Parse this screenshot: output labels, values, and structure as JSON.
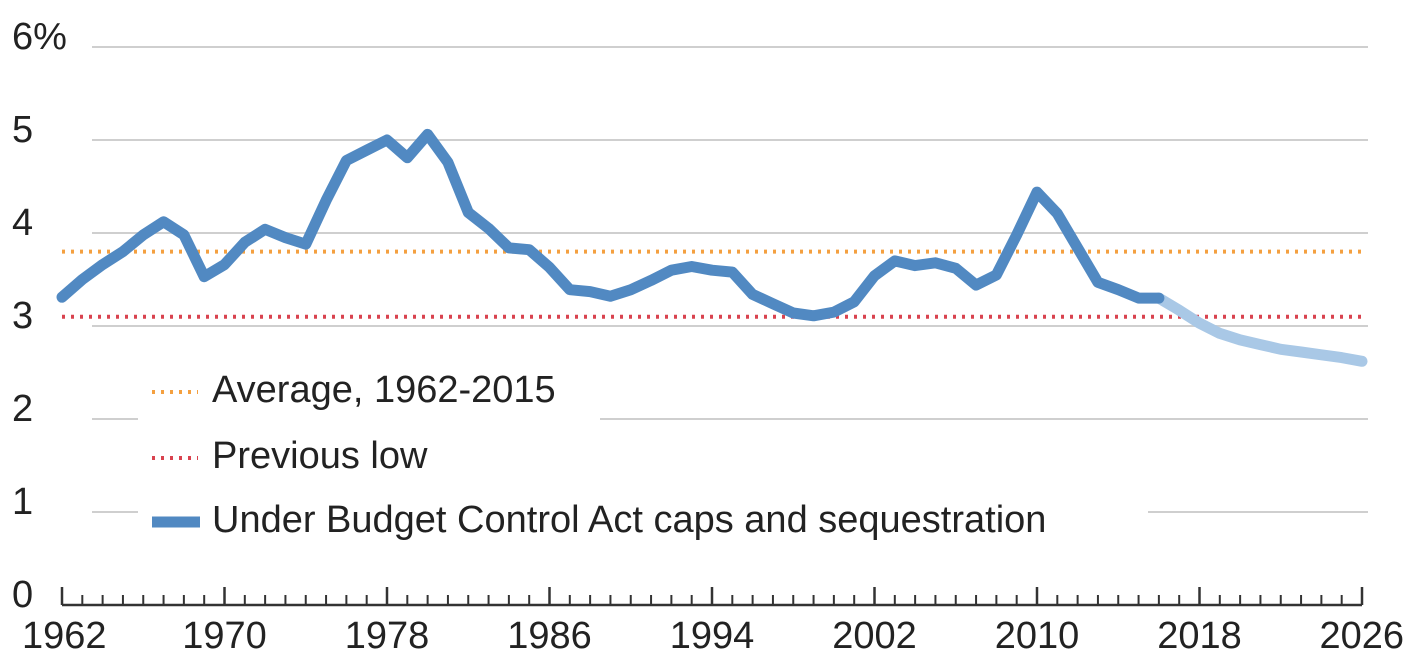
{
  "chart_data": {
    "type": "line",
    "x": [
      1962,
      1963,
      1964,
      1965,
      1966,
      1967,
      1968,
      1969,
      1970,
      1971,
      1972,
      1973,
      1974,
      1975,
      1976,
      1977,
      1978,
      1979,
      1980,
      1981,
      1982,
      1983,
      1984,
      1985,
      1986,
      1987,
      1988,
      1989,
      1990,
      1991,
      1992,
      1993,
      1994,
      1995,
      1996,
      1997,
      1998,
      1999,
      2000,
      2001,
      2002,
      2003,
      2004,
      2005,
      2006,
      2007,
      2008,
      2009,
      2010,
      2011,
      2012,
      2013,
      2014,
      2015,
      2016,
      2017,
      2018,
      2019,
      2020,
      2021,
      2022,
      2023,
      2024,
      2025,
      2026
    ],
    "series": [
      {
        "name": "Under Budget Control Act caps and sequestration",
        "color": "#5189c2",
        "values": [
          3.31,
          3.5,
          3.66,
          3.8,
          3.98,
          4.12,
          3.98,
          3.53,
          3.66,
          3.9,
          4.04,
          3.95,
          3.88,
          4.35,
          4.78,
          4.89,
          5.0,
          4.81,
          5.06,
          4.76,
          4.22,
          4.05,
          3.84,
          3.82,
          3.63,
          3.39,
          3.37,
          3.32,
          3.39,
          3.49,
          3.6,
          3.64,
          3.6,
          3.58,
          3.34,
          3.24,
          3.14,
          3.11,
          3.15,
          3.26,
          3.54,
          3.7,
          3.65,
          3.68,
          3.62,
          3.44,
          3.55,
          3.98,
          4.44,
          4.21,
          3.84,
          3.47,
          3.39,
          3.3,
          3.3,
          null,
          null,
          null,
          null,
          null,
          null,
          null,
          null,
          null,
          null
        ]
      },
      {
        "color": "#a9c8e6",
        "values": [
          null,
          null,
          null,
          null,
          null,
          null,
          null,
          null,
          null,
          null,
          null,
          null,
          null,
          null,
          null,
          null,
          null,
          null,
          null,
          null,
          null,
          null,
          null,
          null,
          null,
          null,
          null,
          null,
          null,
          null,
          null,
          null,
          null,
          null,
          null,
          null,
          null,
          null,
          null,
          null,
          null,
          null,
          null,
          null,
          null,
          null,
          null,
          null,
          null,
          null,
          null,
          null,
          null,
          null,
          3.3,
          3.17,
          3.03,
          2.92,
          2.85,
          2.8,
          2.75,
          2.72,
          2.69,
          2.66,
          2.62
        ]
      }
    ],
    "reference_lines": [
      {
        "name": "Average, 1962-2015",
        "value": 3.8,
        "color": "#f4a040"
      },
      {
        "name": "Previous low",
        "value": 3.1,
        "color": "#d9434f"
      }
    ],
    "xlim": [
      1962,
      2026
    ],
    "xticks": [
      1962,
      1970,
      1978,
      1986,
      1994,
      2002,
      2010,
      2018,
      2026
    ],
    "ylim": [
      0,
      6
    ],
    "yticks": [
      0,
      1,
      2,
      3,
      4,
      5,
      {
        "value": 6,
        "label": "6%"
      }
    ],
    "grid": true
  }
}
